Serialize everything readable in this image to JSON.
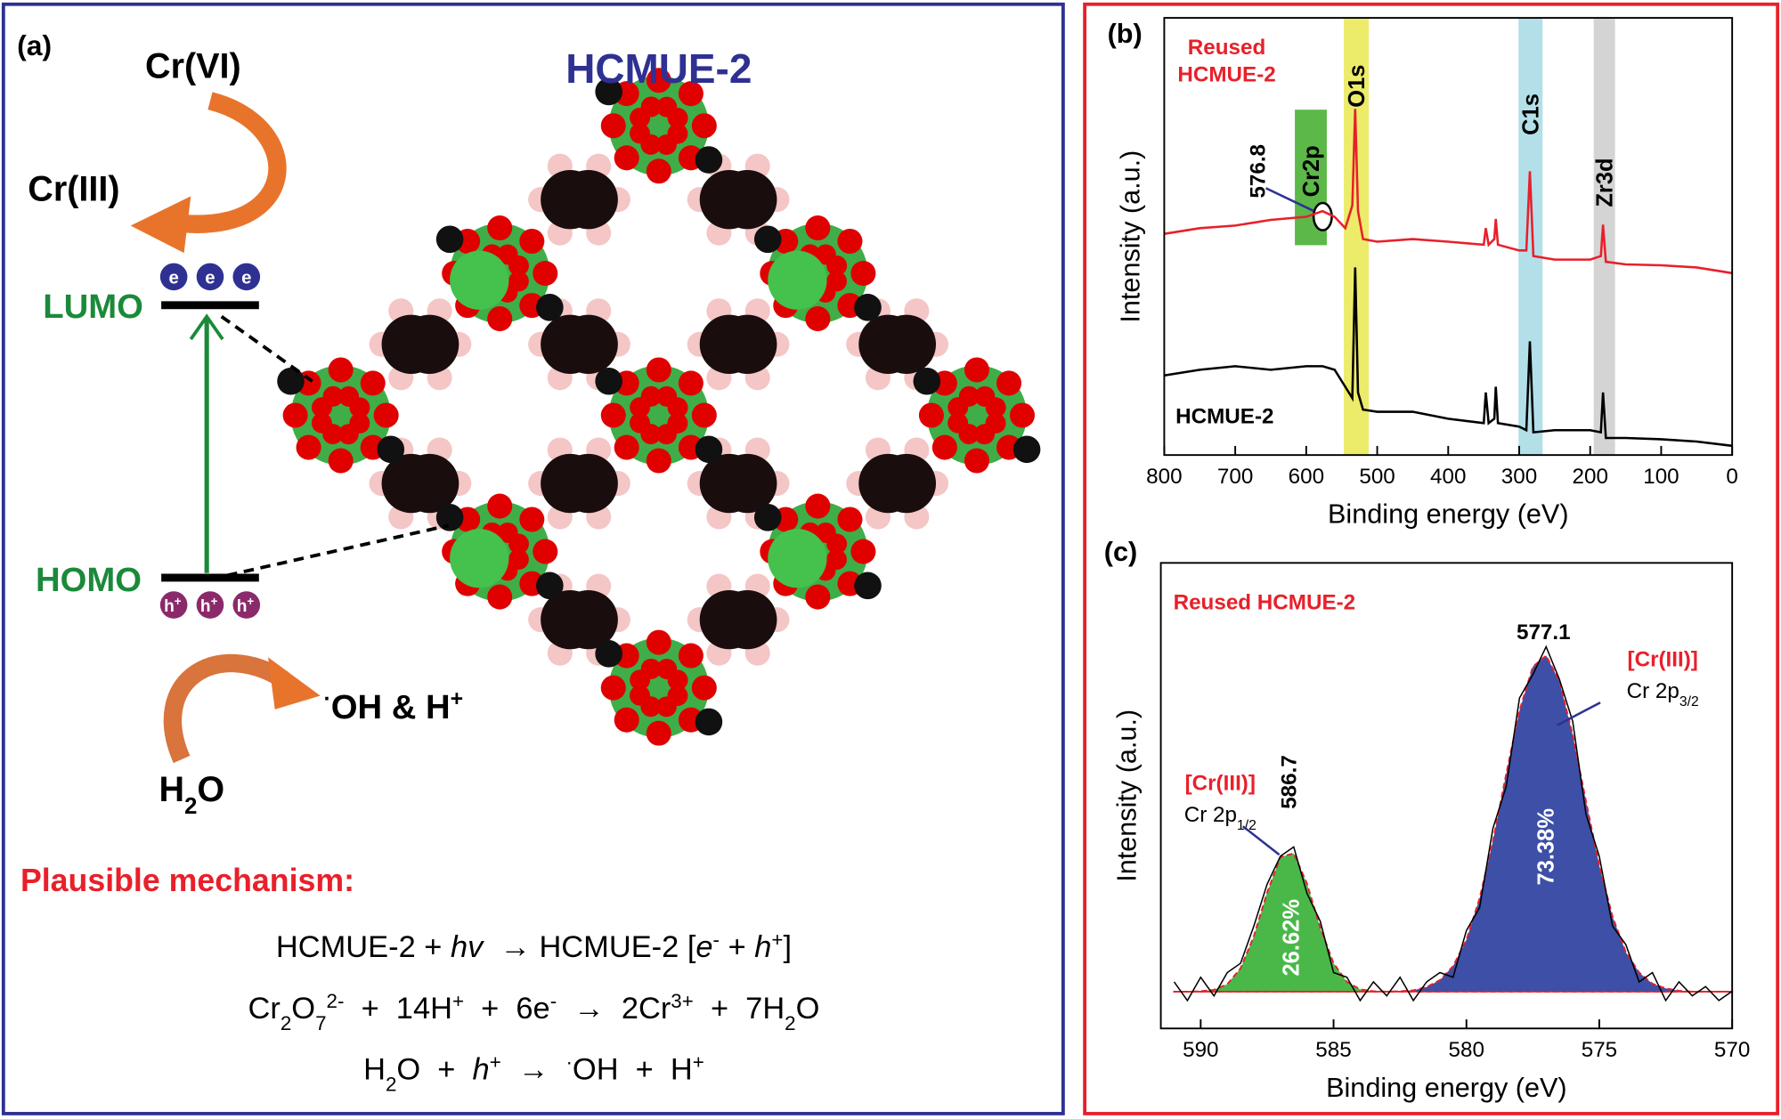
{
  "panel_a": {
    "label": "(a)",
    "title": "HCMUE-2",
    "cr6": "Cr(VI)",
    "cr3": "Cr(III)",
    "lumo": "LUMO",
    "homo": "HOMO",
    "electrons": [
      "e",
      "e",
      "e"
    ],
    "holes": [
      {
        "base": "h",
        "sup": "+"
      },
      {
        "base": "h",
        "sup": "+"
      },
      {
        "base": "h",
        "sup": "+"
      }
    ],
    "oh": [
      {
        "text": "·",
        "style": "sup"
      },
      {
        "text": "OH & H"
      },
      {
        "text": "+",
        "style": "sup"
      }
    ],
    "h2o": [
      {
        "text": "H"
      },
      {
        "text": "2",
        "style": "sub"
      },
      {
        "text": "O"
      }
    ],
    "mechanism_title": "Plausible mechanism:",
    "equations": [
      [
        {
          "text": "HCMUE-2 + "
        },
        {
          "text": "hv",
          "style": "i"
        },
        {
          "text": "  → HCMUE-2 ["
        },
        {
          "text": "e",
          "style": "i"
        },
        {
          "text": "-",
          "style": "sup"
        },
        {
          "text": " + "
        },
        {
          "text": "h",
          "style": "i"
        },
        {
          "text": "+",
          "style": "sup"
        },
        {
          "text": "]"
        }
      ],
      [
        {
          "text": "Cr"
        },
        {
          "text": "2",
          "style": "sub"
        },
        {
          "text": "O"
        },
        {
          "text": "7",
          "style": "sub"
        },
        {
          "text": "2-",
          "style": "sup"
        },
        {
          "text": "  +  14H"
        },
        {
          "text": "+",
          "style": "sup"
        },
        {
          "text": "  +  6e"
        },
        {
          "text": "-",
          "style": "sup"
        },
        {
          "text": "  →  2Cr"
        },
        {
          "text": "3+",
          "style": "sup"
        },
        {
          "text": "  +  7H"
        },
        {
          "text": "2",
          "style": "sub"
        },
        {
          "text": "O"
        }
      ],
      [
        {
          "text": "H"
        },
        {
          "text": "2",
          "style": "sub"
        },
        {
          "text": "O  +  "
        },
        {
          "text": "h",
          "style": "i"
        },
        {
          "text": "+",
          "style": "sup"
        },
        {
          "text": "  →  "
        },
        {
          "text": "·",
          "style": "sup"
        },
        {
          "text": "OH  +  H"
        },
        {
          "text": "+",
          "style": "sup"
        }
      ]
    ]
  },
  "chart_data": [
    {
      "type": "line",
      "label": "(b)",
      "x_label": "Binding energy (eV)",
      "y_label": "Intensity (a.u.)",
      "xlim": [
        800,
        0
      ],
      "xticks": [
        800,
        700,
        600,
        500,
        400,
        300,
        200,
        100,
        0
      ],
      "ylim": [
        0,
        100
      ],
      "x": [
        800,
        750,
        700,
        650,
        600,
        577,
        560,
        545,
        535,
        531,
        527,
        520,
        500,
        450,
        400,
        350,
        347,
        343,
        335,
        333,
        330,
        300,
        290,
        285,
        280,
        250,
        200,
        185,
        182,
        178,
        150,
        100,
        50,
        0
      ],
      "series": [
        {
          "name": "Reused HCMUE-2",
          "color": "#e8202a",
          "values": [
            50.6,
            51.9,
            52.5,
            53.8,
            54.5,
            55.8,
            54.5,
            51.9,
            57.1,
            79.2,
            55.8,
            49.4,
            48.8,
            49.4,
            48.8,
            48.1,
            51.9,
            48.1,
            49.4,
            54.0,
            48.1,
            46.8,
            46.8,
            64.9,
            45.5,
            44.7,
            44.7,
            45.5,
            52.7,
            44.2,
            43.6,
            43.4,
            42.9,
            41.6
          ]
        },
        {
          "name": "HCMUE-2",
          "color": "#000000",
          "values": [
            18.2,
            19.5,
            20.3,
            19.5,
            20.3,
            20.3,
            19.5,
            15.6,
            13.0,
            42.9,
            14.3,
            10.4,
            9.9,
            9.9,
            8.3,
            7.3,
            14.3,
            7.3,
            8.3,
            15.6,
            7.3,
            6.5,
            5.7,
            26.0,
            5.2,
            5.7,
            5.7,
            5.2,
            14.3,
            3.9,
            3.9,
            3.6,
            3.1,
            2.1
          ]
        }
      ],
      "bands": [
        {
          "label": "Cr2p",
          "range": [
            616,
            571
          ],
          "yrange": [
            48,
            79
          ],
          "color": "#5cb848"
        },
        {
          "label": "O1s",
          "range": [
            547,
            512
          ],
          "color": "#ecec6a"
        },
        {
          "label": "C1s",
          "range": [
            301,
            267
          ],
          "color": "#b3dfe9"
        },
        {
          "label": "Zr3d",
          "range": [
            195,
            165
          ],
          "color": "#d4d4d4"
        }
      ],
      "annotations": [
        {
          "text": "576.8",
          "x": 576.8
        }
      ]
    },
    {
      "type": "line",
      "label": "(c)",
      "title": "Reused HCMUE-2",
      "x_label": "Binding energy (eV)",
      "y_label": "Intensity (a.u.)",
      "xlim": [
        591.5,
        570
      ],
      "xticks": [
        590,
        585,
        580,
        575,
        570
      ],
      "ylim": [
        0,
        100
      ],
      "x": [
        591,
        590.5,
        590,
        589.5,
        589,
        588.5,
        588,
        587.5,
        587,
        586.5,
        586,
        585.5,
        585,
        584.5,
        584,
        583.5,
        583,
        582.5,
        582,
        581.5,
        581,
        580.5,
        580,
        579.5,
        579,
        578.5,
        578,
        577.5,
        577,
        576.5,
        576,
        575.5,
        575,
        574.5,
        574,
        573.5,
        573,
        572.5,
        572,
        571.5,
        571,
        570.5,
        570
      ],
      "series": [
        {
          "color": "#000000",
          "values": [
            10,
            6,
            11,
            7,
            12,
            14,
            22,
            31,
            37,
            39,
            29,
            23,
            12,
            11,
            6,
            10,
            7,
            11,
            6,
            10,
            12,
            11,
            21,
            26,
            43,
            52,
            71,
            76,
            82,
            75,
            66,
            46,
            37,
            22,
            18,
            10,
            12,
            6,
            10,
            7,
            9,
            6,
            8
          ]
        },
        {
          "color": "#4ab848",
          "fill": true,
          "values": [
            7.9,
            7.9,
            8.0,
            8.3,
            9.5,
            12.9,
            19.8,
            29.2,
            36.8,
            37.6,
            31.1,
            21.6,
            14.0,
            10.0,
            8.4,
            8.0,
            7.9,
            7.9,
            7.9,
            7.9,
            7.9,
            7.9,
            7.9,
            7.9,
            7.9,
            7.9,
            7.9,
            7.9,
            7.9,
            7.9,
            7.9,
            7.9,
            7.9,
            7.9,
            7.9,
            7.9,
            7.9,
            7.9,
            7.9,
            7.9,
            7.9,
            7.9,
            7.9
          ]
        },
        {
          "color": "#3d4fa6",
          "fill": true,
          "values": [
            7.9,
            7.9,
            7.9,
            7.9,
            7.9,
            7.9,
            7.9,
            7.9,
            7.9,
            7.9,
            7.9,
            7.9,
            7.9,
            7.9,
            7.9,
            7.9,
            7.9,
            8.0,
            8.2,
            8.9,
            10.4,
            13.4,
            19.0,
            28.0,
            40.3,
            54.7,
            68.3,
            77.7,
            80.1,
            74.6,
            63.1,
            48.8,
            35.0,
            24.0,
            16.4,
            12.0,
            9.6,
            8.6,
            8.1,
            7.9,
            7.9,
            7.9,
            7.9
          ]
        }
      ],
      "peaks": [
        {
          "text": "586.7",
          "x": 586.7
        },
        {
          "text": "577.1",
          "x": 577.1
        }
      ],
      "percents": [
        {
          "text": "26.62%",
          "x": 586.7
        },
        {
          "text": "73.38%",
          "x": 577.1
        }
      ],
      "assignments": [
        {
          "state": "[Cr(III)]",
          "orbital": "Cr 2p",
          "sub": "1/2",
          "x": 586.7
        },
        {
          "state": "[Cr(III)]",
          "orbital": "Cr 2p",
          "sub": "3/2",
          "x": 577.1
        }
      ]
    }
  ]
}
